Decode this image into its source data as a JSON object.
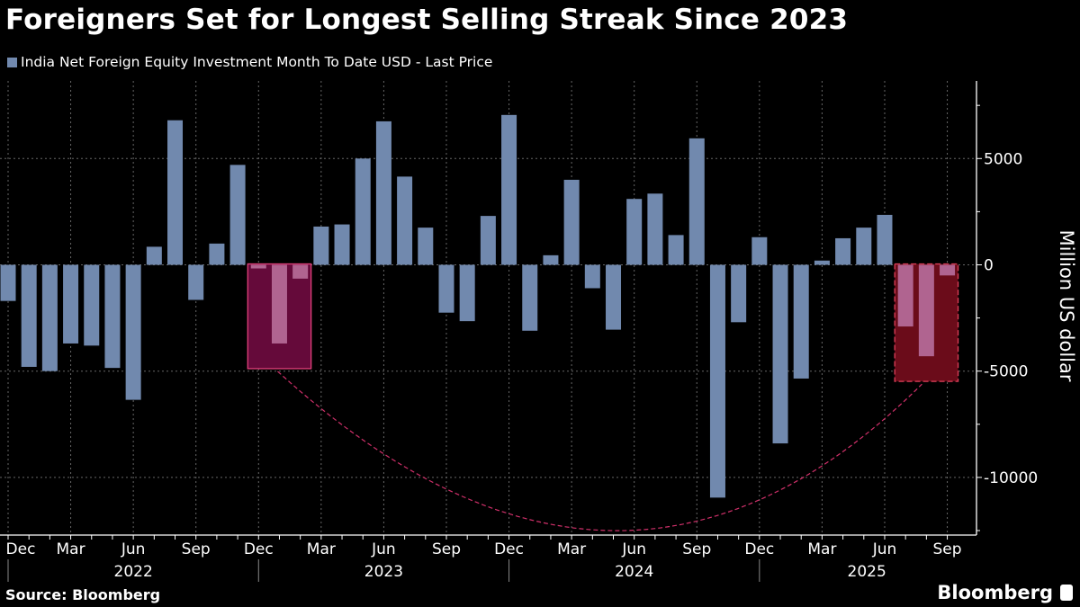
{
  "title": "Foreigners Set for Longest Selling Streak Since 2023",
  "source": "Source: Bloomberg",
  "brand": "Bloomberg",
  "colors": {
    "bar": "#7189ae",
    "highlight_bar": "#b06490",
    "box1_fill": "#650a3a",
    "box1_border": "#e0407a",
    "box2_fill": "#6b0c1a",
    "box2_border": "#e0405a",
    "arc": "#d0306a"
  },
  "chart_data": {
    "type": "bar",
    "title": "Foreigners Set for Longest Selling Streak Since 2023",
    "series": [
      {
        "name": "India Net Foreign Equity Investment Month To Date USD - Last Price",
        "values": [
          -1700,
          -4800,
          -5000,
          -3700,
          -3800,
          -4850,
          -6350,
          850,
          6800,
          -1650,
          1000,
          4700,
          -170,
          -3700,
          -650,
          1800,
          1900,
          5000,
          6750,
          4150,
          1750,
          -2250,
          -2650,
          2300,
          7050,
          -3100,
          450,
          4000,
          -1100,
          -3050,
          3100,
          3350,
          1400,
          5950,
          -10950,
          -2700,
          1300,
          -8400,
          -5350,
          200,
          1250,
          1750,
          2350,
          -2900,
          -4300,
          -500
        ]
      }
    ],
    "x": [
      "2021-12",
      "2022-01",
      "2022-02",
      "2022-03",
      "2022-04",
      "2022-05",
      "2022-06",
      "2022-07",
      "2022-08",
      "2022-09",
      "2022-10",
      "2022-11",
      "2022-12",
      "2023-01",
      "2023-02",
      "2023-03",
      "2023-04",
      "2023-05",
      "2023-06",
      "2023-07",
      "2023-08",
      "2023-09",
      "2023-10",
      "2023-11",
      "2023-12",
      "2024-01",
      "2024-02",
      "2024-03",
      "2024-04",
      "2024-05",
      "2024-06",
      "2024-07",
      "2024-08",
      "2024-09",
      "2024-10",
      "2024-11",
      "2024-12",
      "2025-01",
      "2025-02",
      "2025-03",
      "2025-04",
      "2025-05",
      "2025-06",
      "2025-07",
      "2025-08",
      "2025-09"
    ],
    "highlights": [
      {
        "from": "2022-12",
        "to": "2023-02"
      },
      {
        "from": "2025-07",
        "to": "2025-09"
      }
    ],
    "month_tick_labels": [
      "Dec",
      "Mar",
      "Jun",
      "Sep",
      "Dec",
      "Mar",
      "Jun",
      "Sep",
      "Dec",
      "Mar",
      "Jun",
      "Sep",
      "Dec",
      "Mar",
      "Jun",
      "Sep"
    ],
    "year_labels": [
      "2022",
      "2023",
      "2024",
      "2025"
    ],
    "yticks": [
      5000,
      0,
      -5000,
      -10000
    ],
    "ylabel": "Million US dollar",
    "ylim": [
      -12500,
      8650
    ],
    "y_axis_side": "right",
    "grid": true,
    "legend": "top-left"
  }
}
